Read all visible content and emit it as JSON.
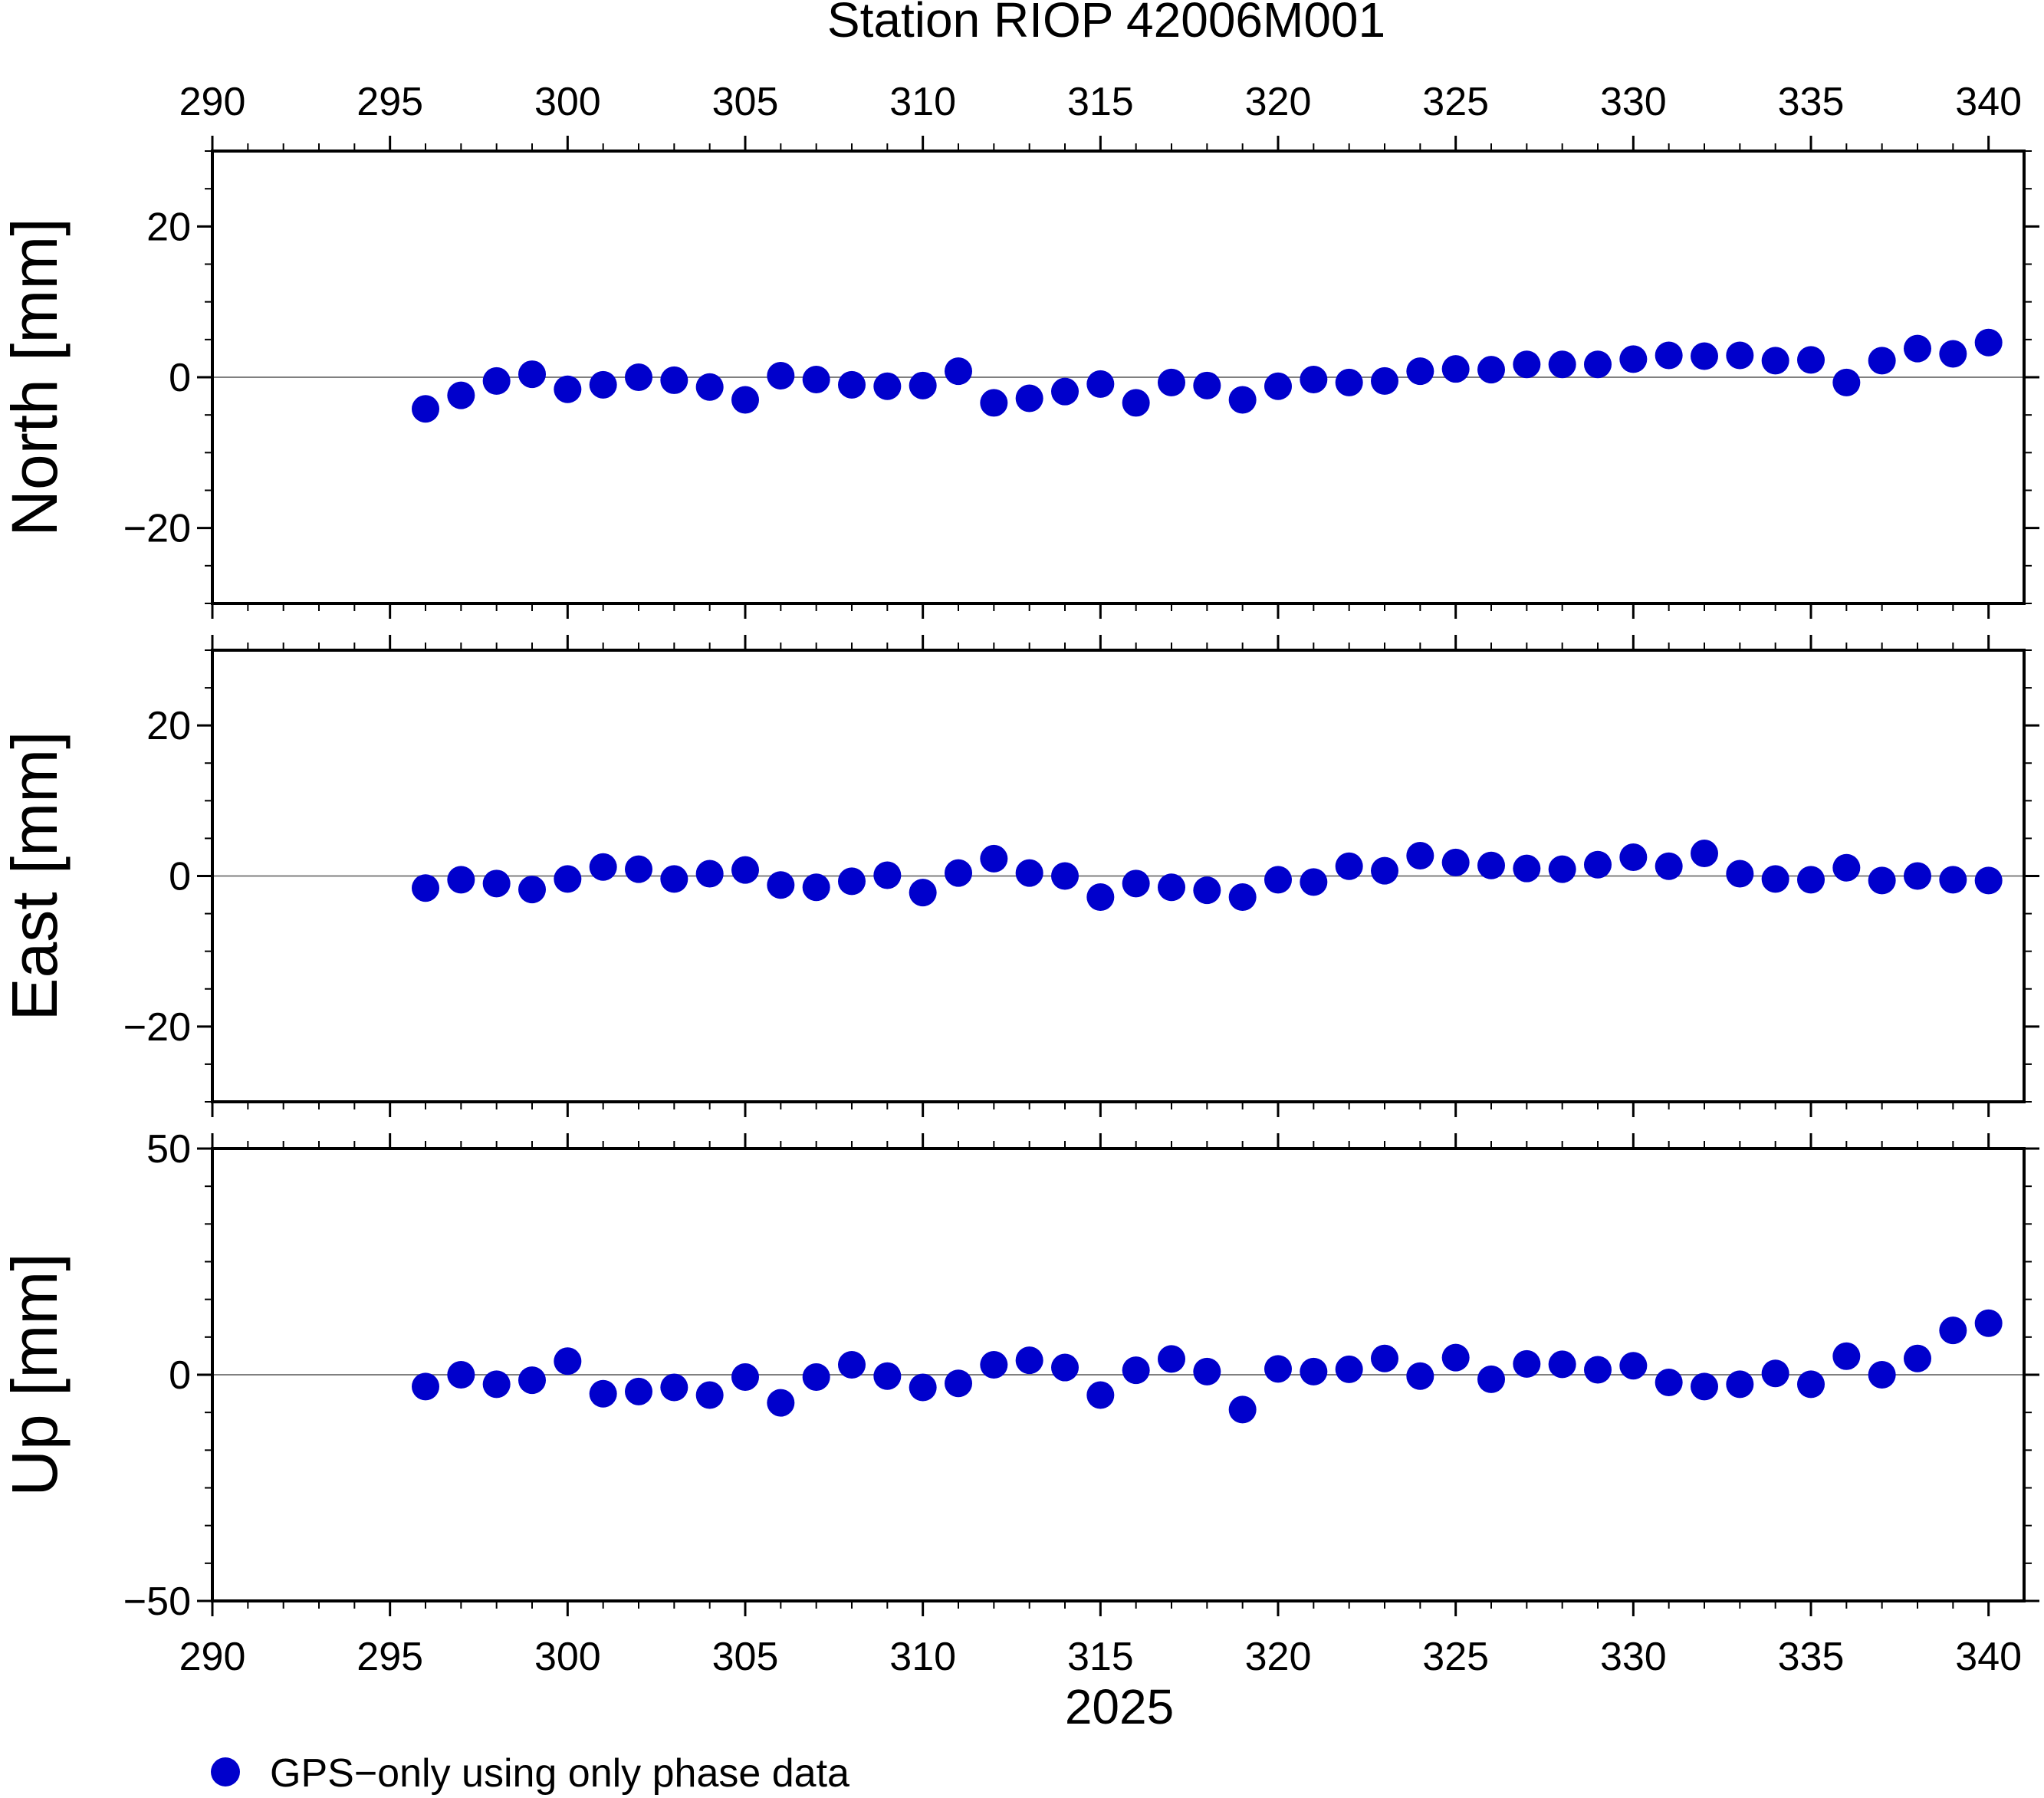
{
  "chart_data": {
    "type": "scatter",
    "title": "Station RIOP 42006M001",
    "xlabel": "2025",
    "xlim": [
      290,
      341
    ],
    "x_ticks_labeled": [
      290,
      295,
      300,
      305,
      310,
      315,
      320,
      325,
      330,
      335,
      340
    ],
    "legend": {
      "label": "GPS−only using only phase data",
      "placement": "bottom-left"
    },
    "marker_color": "#0000cc",
    "x": [
      296,
      297,
      298,
      299,
      300,
      301,
      302,
      303,
      304,
      305,
      306,
      307,
      308,
      309,
      310,
      311,
      312,
      313,
      314,
      315,
      316,
      317,
      318,
      319,
      320,
      321,
      322,
      323,
      324,
      325,
      326,
      327,
      328,
      329,
      330,
      331,
      332,
      333,
      334,
      335,
      336,
      337,
      338,
      339,
      340
    ],
    "panels": [
      {
        "name": "north",
        "ylabel": "North [mm]",
        "ylim": [
          -30,
          30
        ],
        "yticks": [
          -20,
          0,
          20
        ],
        "ytick_labels": [
          "−20",
          "0",
          "20"
        ],
        "values": [
          -4.2,
          -2.4,
          -0.5,
          0.4,
          -1.6,
          -1.0,
          0.0,
          -0.4,
          -1.3,
          -3.0,
          0.2,
          -0.3,
          -1.0,
          -1.2,
          -1.1,
          0.8,
          -3.4,
          -2.8,
          -1.9,
          -0.9,
          -3.4,
          -0.7,
          -1.1,
          -3.0,
          -1.2,
          -0.3,
          -0.7,
          -0.5,
          0.8,
          1.1,
          1.0,
          1.7,
          1.7,
          1.7,
          2.4,
          2.9,
          2.8,
          2.9,
          2.2,
          2.3,
          -0.7,
          2.2,
          3.8,
          3.1,
          4.6
        ]
      },
      {
        "name": "east",
        "ylabel": "East [mm]",
        "ylim": [
          -30,
          30
        ],
        "yticks": [
          -20,
          0,
          20
        ],
        "ytick_labels": [
          "−20",
          "0",
          "20"
        ],
        "values": [
          -1.6,
          -0.5,
          -1.0,
          -1.8,
          -0.4,
          1.2,
          0.9,
          -0.4,
          0.3,
          0.8,
          -1.2,
          -1.5,
          -0.7,
          0.1,
          -2.2,
          0.4,
          2.3,
          0.4,
          0.0,
          -2.8,
          -1.0,
          -1.5,
          -1.9,
          -2.8,
          -0.5,
          -0.8,
          1.3,
          0.7,
          2.7,
          1.8,
          1.4,
          1.0,
          0.9,
          1.5,
          2.5,
          1.3,
          3.0,
          0.3,
          -0.4,
          -0.5,
          1.1,
          -0.6,
          0.0,
          -0.5,
          -0.6
        ]
      },
      {
        "name": "up",
        "ylabel": "Up [mm]",
        "ylim": [
          -50,
          50
        ],
        "yticks": [
          -50,
          0,
          50
        ],
        "ytick_labels": [
          "−50",
          "0",
          "50"
        ],
        "values": [
          -2.6,
          0.0,
          -2.1,
          -1.2,
          3.0,
          -4.2,
          -3.7,
          -2.8,
          -4.5,
          -0.5,
          -6.2,
          -0.5,
          2.2,
          -0.3,
          -2.8,
          -1.9,
          2.2,
          3.2,
          1.6,
          -4.5,
          1.0,
          3.5,
          0.7,
          -7.7,
          1.3,
          0.7,
          1.2,
          3.6,
          -0.3,
          3.8,
          -1.0,
          2.4,
          2.3,
          1.1,
          2.0,
          -1.7,
          -2.6,
          -2.1,
          0.3,
          -2.1,
          4.1,
          0.0,
          3.6,
          9.8,
          11.4
        ]
      }
    ]
  }
}
